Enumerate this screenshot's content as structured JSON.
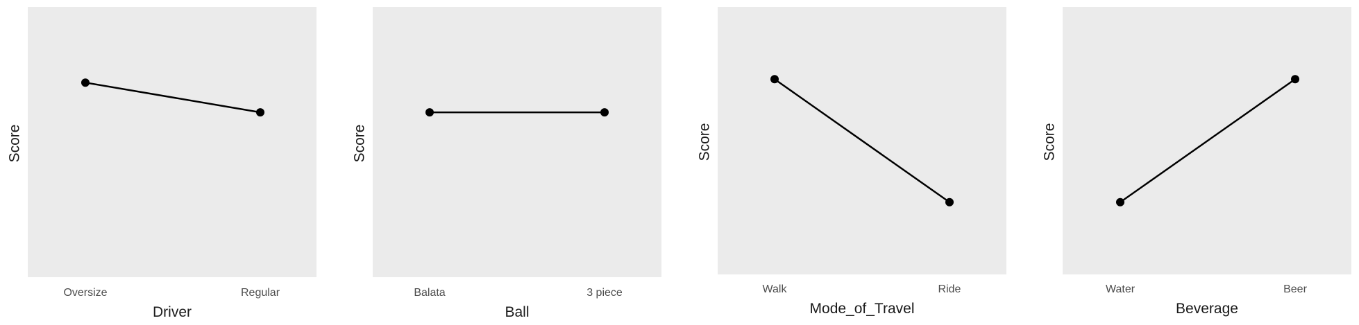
{
  "chart_data": [
    {
      "type": "line",
      "xlabel": "Driver",
      "ylabel": "Score",
      "categories": [
        "Oversize",
        "Regular"
      ],
      "values": [
        0.72,
        0.61
      ],
      "ylim": [
        0,
        1
      ],
      "grid": false,
      "colors": {
        "panel": "#ebebeb",
        "line": "#000000",
        "point": "#000000"
      }
    },
    {
      "type": "line",
      "xlabel": "Ball",
      "ylabel": "Score",
      "categories": [
        "Balata",
        "3 piece"
      ],
      "values": [
        0.61,
        0.61
      ],
      "ylim": [
        0,
        1
      ],
      "grid": false,
      "colors": {
        "panel": "#ebebeb",
        "line": "#000000",
        "point": "#000000"
      }
    },
    {
      "type": "line",
      "xlabel": "Mode_of_Travel",
      "ylabel": "Score",
      "categories": [
        "Walk",
        "Ride"
      ],
      "values": [
        0.73,
        0.27
      ],
      "ylim": [
        0,
        1
      ],
      "grid": false,
      "colors": {
        "panel": "#ebebeb",
        "line": "#000000",
        "point": "#000000"
      }
    },
    {
      "type": "line",
      "xlabel": "Beverage",
      "ylabel": "Score",
      "categories": [
        "Water",
        "Beer"
      ],
      "values": [
        0.27,
        0.73
      ],
      "ylim": [
        0,
        1
      ],
      "grid": false,
      "colors": {
        "panel": "#ebebeb",
        "line": "#000000",
        "point": "#000000"
      }
    }
  ]
}
